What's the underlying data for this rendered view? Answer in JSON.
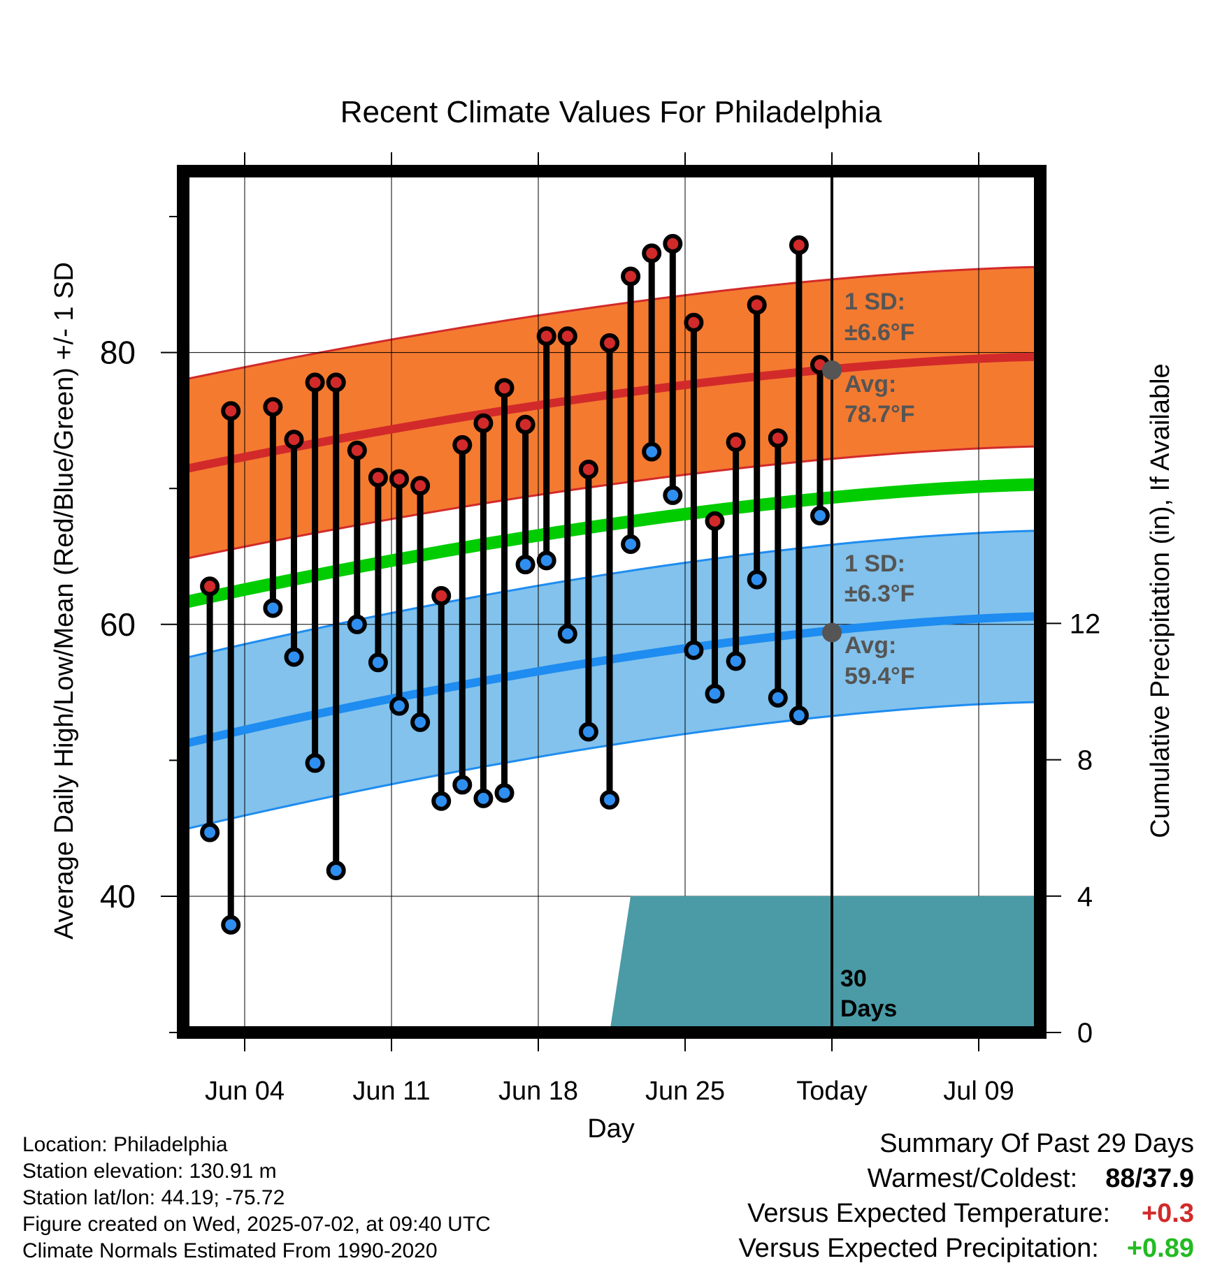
{
  "chart_data": {
    "type": "line",
    "title": "Recent Climate Values For Philadelphia",
    "xlabel": "Day",
    "ylabel": "Average Daily High/Low/Mean (Red/Blue/Green) +/- 1 SD",
    "y2label": "Cumulative Precipitation (in), If Available",
    "x_ticks": [
      "Jun 04",
      "Jun 11",
      "Jun 18",
      "Jun 25",
      "Today",
      "Jul 09"
    ],
    "y_ticks": [
      "40",
      "60",
      "80"
    ],
    "y2_ticks": [
      "0",
      "4",
      "8",
      "12"
    ],
    "ylim": [
      30.2,
      93.8
    ],
    "y2lim": [
      0,
      25
    ],
    "grid": true,
    "day_offsets_note_removed": true,
    "days": [
      "Jun 01",
      "Jun 02",
      "Jun 03",
      "Jun 04",
      "Jun 05",
      "Jun 06",
      "Jun 07",
      "Jun 08",
      "Jun 09",
      "Jun 10",
      "Jun 11",
      "Jun 12",
      "Jun 13",
      "Jun 14",
      "Jun 15",
      "Jun 16",
      "Jun 17",
      "Jun 18",
      "Jun 19",
      "Jun 20",
      "Jun 21",
      "Jun 22",
      "Jun 23",
      "Jun 24",
      "Jun 25",
      "Jun 26",
      "Jun 27",
      "Jun 28",
      "Jun 29",
      "Jun 30",
      "Jul 01",
      "Jul 02",
      "Jul 03",
      "Jul 04",
      "Jul 05",
      "Jul 06",
      "Jul 07",
      "Jul 08",
      "Jul 09",
      "Jul 10",
      "Jul 11",
      "Jul 12"
    ],
    "obs_dates": [
      "Jun 02",
      "Jun 03",
      "Jun 05",
      "Jun 06",
      "Jun 07",
      "Jun 08",
      "Jun 09",
      "Jun 10",
      "Jun 11",
      "Jun 12",
      "Jun 13",
      "Jun 14",
      "Jun 15",
      "Jun 16",
      "Jun 17",
      "Jun 18",
      "Jun 19",
      "Jun 20",
      "Jun 21",
      "Jun 22",
      "Jun 23",
      "Jun 24",
      "Jun 25",
      "Jun 26",
      "Jun 27",
      "Jun 28",
      "Jun 29",
      "Jun 30",
      "Jul 01"
    ],
    "highs": [
      62.8,
      75.7,
      76.0,
      73.6,
      77.8,
      77.8,
      72.8,
      70.8,
      70.7,
      70.2,
      62.1,
      73.2,
      74.8,
      77.4,
      74.7,
      81.2,
      81.2,
      71.4,
      80.7,
      85.6,
      87.3,
      88.0,
      82.2,
      67.6,
      73.4,
      83.5,
      73.7,
      87.9,
      79.1
    ],
    "lows": [
      44.7,
      37.9,
      61.2,
      57.6,
      49.8,
      41.9,
      60.0,
      57.2,
      54.0,
      52.8,
      47.0,
      48.2,
      47.2,
      47.6,
      64.4,
      64.7,
      59.3,
      52.1,
      47.1,
      65.9,
      72.7,
      69.5,
      58.1,
      54.9,
      57.3,
      63.3,
      54.6,
      53.3,
      68.0
    ],
    "precip_cumulative": [
      0,
      0,
      0,
      0,
      0,
      0,
      0,
      0,
      0,
      0,
      0,
      0,
      0,
      0,
      0,
      0,
      0,
      0,
      0,
      0,
      0,
      4.0,
      4.0,
      4.0,
      4.0,
      4.0,
      4.0,
      4.0,
      4.0,
      4.0,
      4.0,
      4.0
    ],
    "series": [
      {
        "name": "high",
        "color": "#e2222a"
      },
      {
        "name": "low",
        "color": "#2f8ff0"
      },
      {
        "name": "mean",
        "color": "#00cc00"
      }
    ],
    "normal_high_start": 71.4,
    "normal_high_end": 79.7,
    "sd_high": 6.6,
    "normal_low_start": 51.2,
    "normal_low_end": 60.6,
    "sd_low": 6.3,
    "normal_mean_start": 61.6,
    "normal_mean_end": 70.3,
    "annotations": {
      "high_sd": "1 SD:",
      "high_sd_val": "±6.6°F",
      "high_avg": "Avg:",
      "high_avg_val": "78.7°F",
      "low_sd": "1 SD:",
      "low_sd_val": "±6.3°F",
      "low_avg": "Avg:",
      "low_avg_val": "59.4°F",
      "today_high": 78.7,
      "today_low": 59.4,
      "days_label_1": "30",
      "days_label_2": "Days"
    },
    "colors": {
      "high_band": "#f47a30",
      "high_line": "#d22a2a",
      "low_band": "#82c2ec",
      "low_line": "#1e8cf0",
      "mean_line": "#00cc00",
      "precip": "#4a9ba6",
      "annot": "#555555"
    }
  },
  "footer": {
    "location": "Location: Philadelphia",
    "elevation": "Station elevation: 130.91 m",
    "latlon": "Station lat/lon: 44.19; -75.72",
    "created": "Figure created on Wed, 2025-07-02, at 09:40 UTC",
    "normals": "Climate Normals Estimated From 1990-2020"
  },
  "summary": {
    "title": "Summary Of Past 29 Days",
    "warm_label": "Warmest/Coldest:",
    "warm_val": "88/37.9",
    "temp_label": "Versus Expected Temperature:",
    "temp_val": "+0.3",
    "temp_color": "#d22a2a",
    "precip_label": "Versus Expected Precipitation:",
    "precip_val": "+0.89",
    "precip_color": "#22bb22"
  }
}
